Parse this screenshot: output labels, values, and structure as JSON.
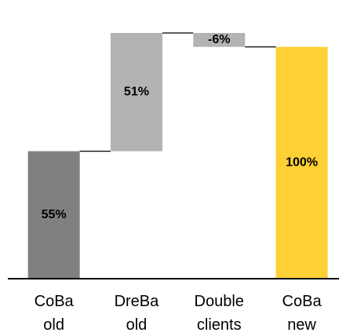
{
  "chart_data": {
    "type": "waterfall",
    "categories": [
      "CoBa old",
      "DreBa old",
      "Double clients",
      "CoBa new"
    ],
    "values": [
      55,
      51,
      -6,
      100
    ],
    "value_labels": [
      "55%",
      "51%",
      "-6%",
      "100%"
    ],
    "measures": [
      "absolute",
      "relative",
      "relative",
      "total"
    ],
    "colors": [
      "#808080",
      "#b3b3b3",
      "#b3b3b3",
      "#fdd035"
    ]
  }
}
